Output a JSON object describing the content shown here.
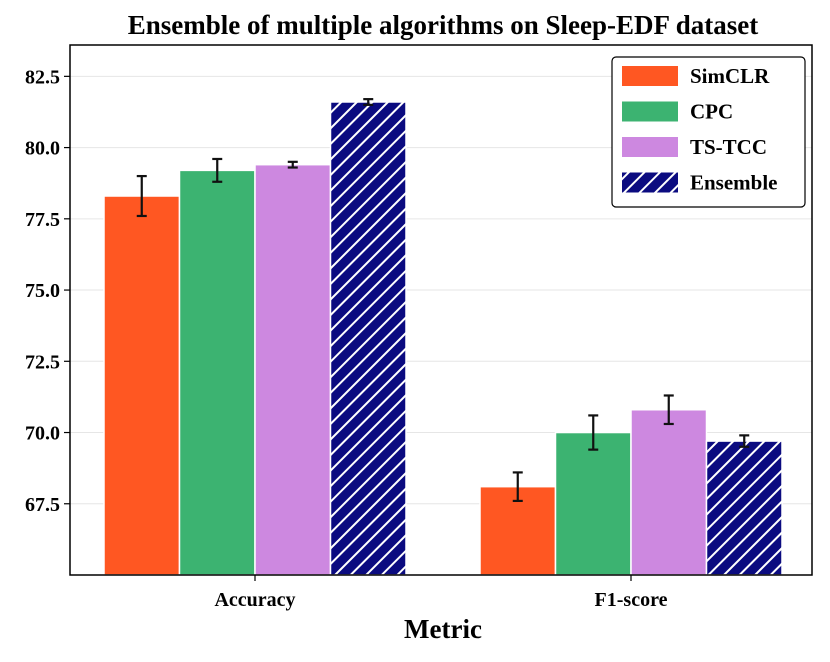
{
  "chart_data": {
    "type": "bar",
    "title": "Ensemble of multiple algorithms on Sleep-EDF dataset",
    "xlabel": "Metric",
    "ylabel": "",
    "categories": [
      "Accuracy",
      "F1-score"
    ],
    "ylim": [
      65.0,
      83.6
    ],
    "yticks": [
      "67.5",
      "70.0",
      "72.5",
      "75.0",
      "77.5",
      "80.0",
      "82.5"
    ],
    "grid": true,
    "legend_position": "top-right",
    "series": [
      {
        "name": "SimCLR",
        "color": "#ff5722",
        "values": [
          78.3,
          68.1
        ],
        "errors": [
          0.7,
          0.5
        ],
        "hatch": false
      },
      {
        "name": "CPC",
        "color": "#3cb371",
        "values": [
          79.2,
          70.0
        ],
        "errors": [
          0.4,
          0.6
        ],
        "hatch": false
      },
      {
        "name": "TS-TCC",
        "color": "#cd88e0",
        "values": [
          79.4,
          70.8
        ],
        "errors": [
          0.1,
          0.5
        ],
        "hatch": false
      },
      {
        "name": "Ensemble",
        "color": "#0b0b80",
        "values": [
          81.6,
          69.7
        ],
        "errors": [
          0.1,
          0.2
        ],
        "hatch": true
      }
    ]
  }
}
